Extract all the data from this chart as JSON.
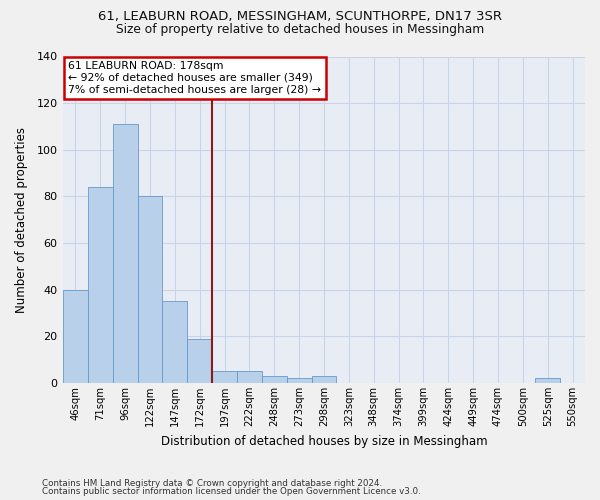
{
  "title1": "61, LEABURN ROAD, MESSINGHAM, SCUNTHORPE, DN17 3SR",
  "title2": "Size of property relative to detached houses in Messingham",
  "xlabel": "Distribution of detached houses by size in Messingham",
  "ylabel": "Number of detached properties",
  "bar_labels": [
    "46sqm",
    "71sqm",
    "96sqm",
    "122sqm",
    "147sqm",
    "172sqm",
    "197sqm",
    "222sqm",
    "248sqm",
    "273sqm",
    "298sqm",
    "323sqm",
    "348sqm",
    "374sqm",
    "399sqm",
    "424sqm",
    "449sqm",
    "474sqm",
    "500sqm",
    "525sqm",
    "550sqm"
  ],
  "bar_values": [
    40,
    84,
    111,
    80,
    35,
    19,
    5,
    5,
    3,
    2,
    3,
    0,
    0,
    0,
    0,
    0,
    0,
    0,
    0,
    2,
    0
  ],
  "bar_color": "#b8d0ea",
  "bar_edge_color": "#6699cc",
  "vline_x": 5.5,
  "vline_color": "#8b1a1a",
  "ylim": [
    0,
    140
  ],
  "yticks": [
    0,
    20,
    40,
    60,
    80,
    100,
    120,
    140
  ],
  "annotation_title": "61 LEABURN ROAD: 178sqm",
  "annotation_line1": "← 92% of detached houses are smaller (349)",
  "annotation_line2": "7% of semi-detached houses are larger (28) →",
  "annotation_box_color": "#ffffff",
  "annotation_box_edge": "#cc0000",
  "footer1": "Contains HM Land Registry data © Crown copyright and database right 2024.",
  "footer2": "Contains public sector information licensed under the Open Government Licence v3.0.",
  "grid_color": "#c8d4e8",
  "plot_bg_color": "#e8edf5",
  "fig_bg_color": "#f0f0f0"
}
